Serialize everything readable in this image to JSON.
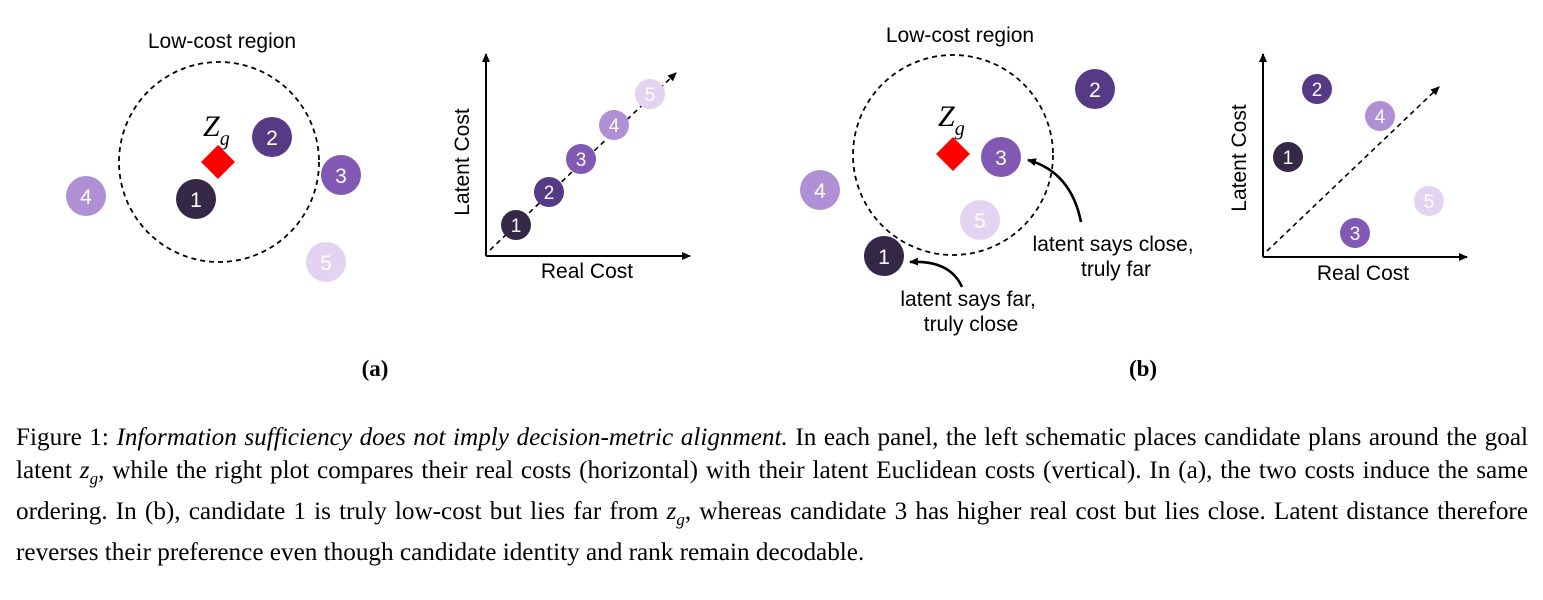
{
  "palette": {
    "c1": "#342846",
    "c2": "#563a86",
    "c3": "#8158b4",
    "c4": "#af90d4",
    "c5": "#e4d3f0",
    "goal": "#ff0000",
    "numLight": "#ffffff"
  },
  "panel_a": {
    "region_label": "Low-cost region",
    "goal_label": "Z",
    "goal_subscript": "g",
    "candidates": [
      "1",
      "2",
      "3",
      "4",
      "5"
    ],
    "plot": {
      "xlabel": "Real Cost",
      "ylabel": "Latent Cost"
    },
    "sublabel": "(a)"
  },
  "panel_b": {
    "region_label": "Low-cost region",
    "goal_label": "Z",
    "goal_subscript": "g",
    "candidates": [
      "1",
      "2",
      "3",
      "4",
      "5"
    ],
    "annotation_1": {
      "line1": "latent says far,",
      "line2": "truly close"
    },
    "annotation_3": {
      "line1": "latent says close,",
      "line2": "truly far"
    },
    "plot": {
      "xlabel": "Real Cost",
      "ylabel": "Latent Cost"
    },
    "sublabel": "(b)"
  },
  "caption": {
    "figure_label": "Figure 1:",
    "title": "Information sufficiency does not imply decision-metric alignment.",
    "text1": "In each panel, the left schematic places candidate plans around the goal latent",
    "text2": ", while the right plot compares their real costs (horizontal) with their latent Euclidean costs (vertical). In (a), the two costs induce the same ordering. In (b), candidate 1 is truly low-cost but lies far from",
    "text3": ", whereas candidate 3 has higher real cost but lies close. Latent distance therefore reverses their preference even though candidate identity and rank remain decodable.",
    "math_var": "z",
    "math_sub": "g"
  }
}
